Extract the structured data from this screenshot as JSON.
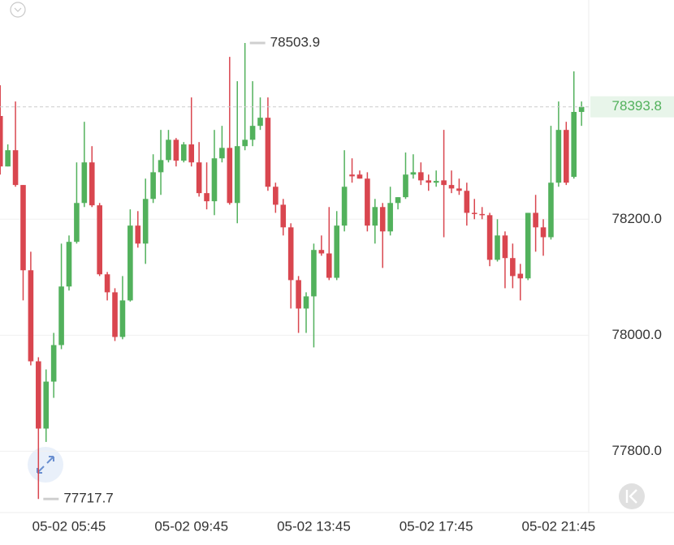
{
  "chart_data": {
    "type": "candlestick",
    "categories": [
      null,
      null,
      null,
      null,
      null,
      null,
      null,
      null,
      null,
      "05-02 05:45",
      null,
      null,
      null,
      null,
      null,
      null,
      null,
      null,
      null,
      null,
      null,
      null,
      null,
      null,
      null,
      "05-02 09:45",
      null,
      null,
      null,
      null,
      null,
      null,
      null,
      null,
      null,
      null,
      null,
      null,
      null,
      null,
      null,
      "05-02 13:45",
      null,
      null,
      null,
      null,
      null,
      null,
      null,
      null,
      null,
      null,
      null,
      null,
      null,
      null,
      null,
      "05-02 17:45",
      null,
      null,
      null,
      null,
      null,
      null,
      null,
      null,
      null,
      null,
      null,
      null,
      null,
      null,
      null,
      "05-02 21:45",
      null,
      null,
      null
    ],
    "open": [
      78378,
      78291,
      78319,
      78259,
      78112,
      77955,
      77839,
      77920,
      77983,
      78084,
      78161,
      78228,
      78298,
      78224,
      78105,
      78074,
      77997,
      78060,
      78189,
      78158,
      78235,
      78281,
      78302,
      78337,
      78301,
      78329,
      78298,
      78245,
      78231,
      78305,
      78323,
      78228,
      78326,
      78337,
      78361,
      78375,
      78256,
      78225,
      78186,
      78095,
      78046,
      78067,
      78147,
      78141,
      78099,
      78189,
      78277,
      78277,
      78270,
      78189,
      78221,
      78179,
      78228,
      78238,
      78277,
      78281,
      78267,
      78263,
      78267,
      78259,
      78253,
      78249,
      78211,
      78209,
      78207,
      78130,
      78172,
      78133,
      78106,
      78098,
      78211,
      78186,
      78169,
      78263,
      78354,
      78273,
      78385
    ],
    "high": [
      78431,
      78329,
      78403,
      78259,
      78144,
      77962,
      77941,
      78004,
      78158,
      78172,
      78298,
      78368,
      78326,
      78228,
      78109,
      78081,
      78102,
      78217,
      78214,
      78270,
      78312,
      78354,
      78354,
      78340,
      78333,
      78410,
      78333,
      78298,
      78354,
      78361,
      78480,
      78438,
      78503.9,
      78438,
      78410,
      78410,
      78263,
      78235,
      78193,
      78102,
      78074,
      78158,
      78172,
      78221,
      78214,
      78319,
      78305,
      78284,
      78281,
      78235,
      78228,
      78256,
      78238,
      78315,
      78312,
      78298,
      78277,
      78284,
      78354,
      78284,
      78270,
      78263,
      78235,
      78221,
      78211,
      78200,
      78179,
      78158,
      78123,
      78211,
      78242,
      78200,
      78361,
      78403,
      78368,
      78455,
      78403
    ],
    "low": [
      78277,
      78291,
      78256,
      78060,
      77948,
      77717.7,
      77816,
      77892,
      77976,
      78077,
      78158,
      78221,
      78221,
      78102,
      78060,
      77990,
      77993,
      78058,
      78151,
      78123,
      78228,
      78242,
      78298,
      78291,
      78298,
      78291,
      78239,
      78217,
      78207,
      78298,
      78225,
      78193,
      78319,
      78326,
      78354,
      78249,
      78211,
      78172,
      78046,
      78004,
      78004,
      77979,
      78137,
      78095,
      78095,
      78179,
      78263,
      78270,
      78179,
      78158,
      78116,
      78172,
      78217,
      78235,
      78270,
      78259,
      78249,
      78256,
      78169,
      78245,
      78242,
      78189,
      78200,
      78200,
      78119,
      78127,
      78081,
      78081,
      78060,
      78095,
      78144,
      78137,
      78165,
      78256,
      78259,
      78270,
      78361
    ],
    "close": [
      78291,
      78319,
      78259,
      78112,
      77955,
      77839,
      77920,
      77983,
      78084,
      78161,
      78228,
      78298,
      78224,
      78105,
      78074,
      77997,
      78060,
      78189,
      78158,
      78235,
      78281,
      78302,
      78337,
      78301,
      78329,
      78298,
      78245,
      78231,
      78305,
      78323,
      78228,
      78326,
      78337,
      78361,
      78375,
      78256,
      78225,
      78186,
      78095,
      78046,
      78067,
      78147,
      78141,
      78099,
      78189,
      78256,
      78274,
      78270,
      78189,
      78221,
      78179,
      78228,
      78238,
      78277,
      78281,
      78267,
      78263,
      78266,
      78259,
      78253,
      78249,
      78211,
      78209,
      78207,
      78130,
      78172,
      78133,
      78102,
      78098,
      78211,
      78186,
      78169,
      78263,
      78354,
      78263,
      78385,
      78393.8
    ],
    "up_color": "#52b15c",
    "down_color": "#d9464f",
    "ylim": [
      77697,
      78578
    ],
    "yticks": [
      {
        "value": 77800,
        "label": "77800.0"
      },
      {
        "value": 78000,
        "label": "78000.0"
      },
      {
        "value": 78200,
        "label": "78200.0"
      }
    ],
    "grid": true
  }
}
